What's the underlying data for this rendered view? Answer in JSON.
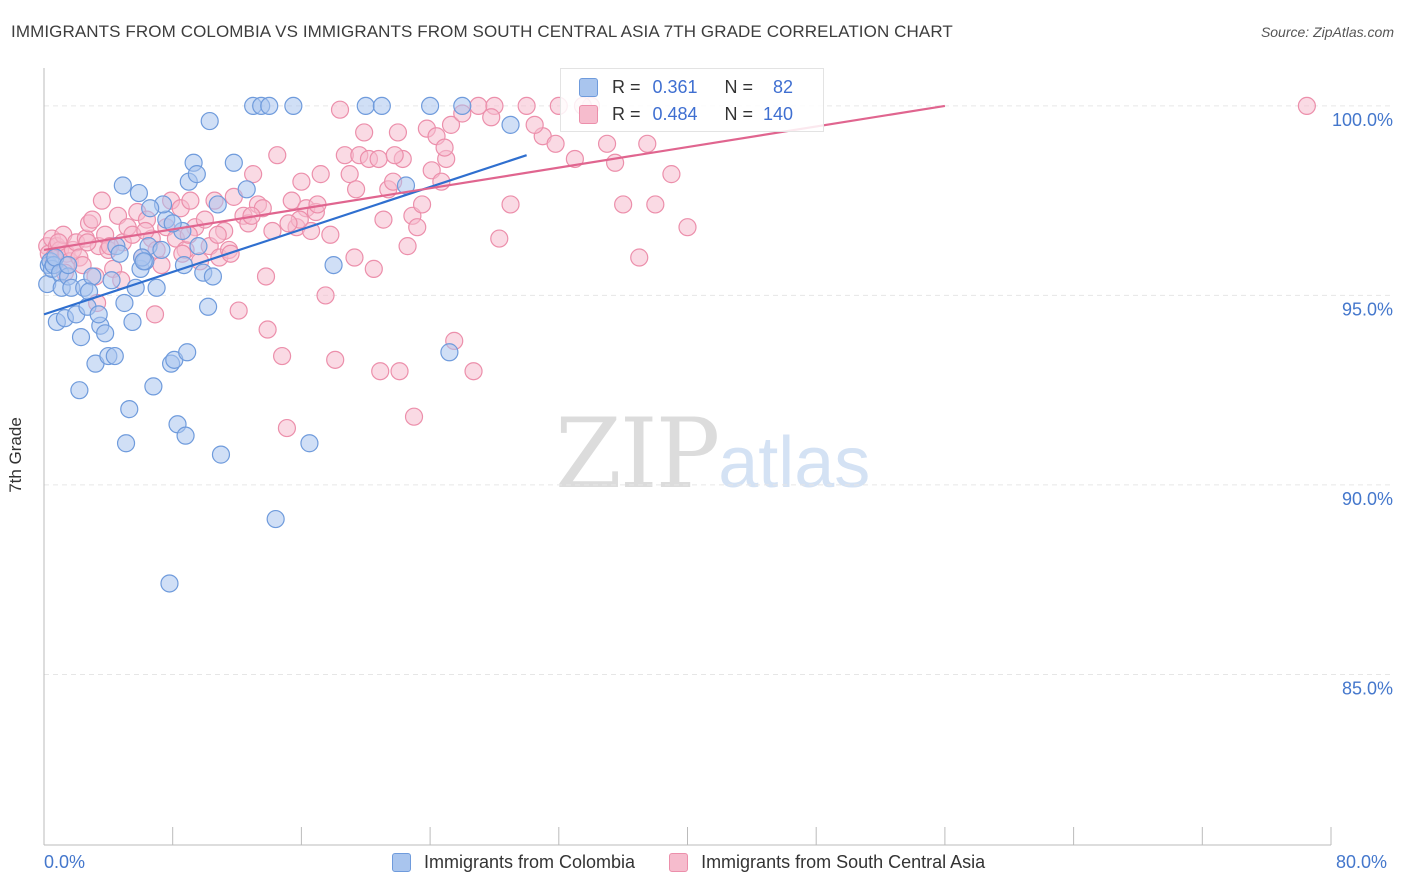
{
  "title": "IMMIGRANTS FROM COLOMBIA VS IMMIGRANTS FROM SOUTH CENTRAL ASIA 7TH GRADE CORRELATION CHART",
  "source": "Source: ZipAtlas.com",
  "watermark": {
    "zip": "ZIP",
    "atlas": "atlas"
  },
  "stats": {
    "colombia": {
      "r_label": "R =",
      "r_value": "0.361",
      "n_label": "N =",
      "n_value": "82"
    },
    "sca": {
      "r_label": "R =",
      "r_value": "0.484",
      "n_label": "N =",
      "n_value": "140"
    }
  },
  "legend": {
    "colombia": "Immigrants from Colombia",
    "sca": "Immigrants from South Central Asia"
  },
  "colors": {
    "blue_fill": "#a9c5ee",
    "blue_stroke": "#6f9bdc",
    "blue_line": "#2f6fcf",
    "pink_fill": "#f6bccd",
    "pink_stroke": "#ec8fab",
    "pink_line": "#e0658f",
    "tick_text": "#4477cc",
    "grid": "#e6e6e6"
  },
  "chart_data": {
    "type": "scatter",
    "title": "IMMIGRANTS FROM COLOMBIA VS IMMIGRANTS FROM SOUTH CENTRAL ASIA 7TH GRADE CORRELATION CHART",
    "xlabel": "",
    "ylabel": "7th Grade",
    "xlim": [
      0,
      80
    ],
    "ylim": [
      80.5,
      101.0
    ],
    "x_tick_labels": [
      "0.0%",
      "80.0%"
    ],
    "y_ticks": [
      85.0,
      90.0,
      95.0,
      100.0
    ],
    "y_tick_labels": [
      "85.0%",
      "90.0%",
      "95.0%",
      "100.0%"
    ],
    "grid": true,
    "legend_position": "bottom",
    "series": [
      {
        "name": "Immigrants from Colombia",
        "r": 0.361,
        "n": 82,
        "trend": {
          "x": [
            0.0,
            30.0
          ],
          "y": [
            94.5,
            98.7
          ]
        },
        "points": [
          [
            0.2,
            95.3
          ],
          [
            0.3,
            95.8
          ],
          [
            0.4,
            95.9
          ],
          [
            0.5,
            95.7
          ],
          [
            0.6,
            95.8
          ],
          [
            0.7,
            96.0
          ],
          [
            0.8,
            94.3
          ],
          [
            1.0,
            95.6
          ],
          [
            1.1,
            95.2
          ],
          [
            1.3,
            94.4
          ],
          [
            1.5,
            95.5
          ],
          [
            1.7,
            95.2
          ],
          [
            2.0,
            94.5
          ],
          [
            2.3,
            93.9
          ],
          [
            2.5,
            95.2
          ],
          [
            2.7,
            94.7
          ],
          [
            3.0,
            95.5
          ],
          [
            3.2,
            93.2
          ],
          [
            3.5,
            94.2
          ],
          [
            3.8,
            94.0
          ],
          [
            4.0,
            93.4
          ],
          [
            4.2,
            95.4
          ],
          [
            4.5,
            96.3
          ],
          [
            4.7,
            96.1
          ],
          [
            5.0,
            94.8
          ],
          [
            5.3,
            92.0
          ],
          [
            5.5,
            94.3
          ],
          [
            5.7,
            95.2
          ],
          [
            6.0,
            95.7
          ],
          [
            6.3,
            95.9
          ],
          [
            6.5,
            96.3
          ],
          [
            6.8,
            92.6
          ],
          [
            7.0,
            95.2
          ],
          [
            7.3,
            96.2
          ],
          [
            7.6,
            97.0
          ],
          [
            7.9,
            93.2
          ],
          [
            8.1,
            93.3
          ],
          [
            8.3,
            91.6
          ],
          [
            8.6,
            96.7
          ],
          [
            8.8,
            91.3
          ],
          [
            9.0,
            98.0
          ],
          [
            9.3,
            98.5
          ],
          [
            9.6,
            96.3
          ],
          [
            9.9,
            95.6
          ],
          [
            10.2,
            94.7
          ],
          [
            10.5,
            95.5
          ],
          [
            10.8,
            97.4
          ],
          [
            11.0,
            90.8
          ],
          [
            1.5,
            95.8
          ],
          [
            2.2,
            92.5
          ],
          [
            4.9,
            97.9
          ],
          [
            5.9,
            97.7
          ],
          [
            6.1,
            96.0
          ],
          [
            7.4,
            97.4
          ],
          [
            8.0,
            96.9
          ],
          [
            8.9,
            93.5
          ],
          [
            9.5,
            98.2
          ],
          [
            10.3,
            99.6
          ],
          [
            11.8,
            98.5
          ],
          [
            12.6,
            97.8
          ],
          [
            13.0,
            100.0
          ],
          [
            13.5,
            100.0
          ],
          [
            14.0,
            100.0
          ],
          [
            14.4,
            89.1
          ],
          [
            15.5,
            100.0
          ],
          [
            16.5,
            91.1
          ],
          [
            18.0,
            95.8
          ],
          [
            20.0,
            100.0
          ],
          [
            21.0,
            100.0
          ],
          [
            22.5,
            97.9
          ],
          [
            24.0,
            100.0
          ],
          [
            25.2,
            93.5
          ],
          [
            26.0,
            100.0
          ],
          [
            29.0,
            99.5
          ],
          [
            4.4,
            93.4
          ],
          [
            3.4,
            94.5
          ],
          [
            5.1,
            91.1
          ],
          [
            6.6,
            97.3
          ],
          [
            8.7,
            95.8
          ],
          [
            7.8,
            87.4
          ],
          [
            2.8,
            95.1
          ],
          [
            6.2,
            95.9
          ]
        ]
      },
      {
        "name": "Immigrants from South Central Asia",
        "r": 0.484,
        "n": 140,
        "trend": {
          "x": [
            0.0,
            56.0
          ],
          "y": [
            96.2,
            100.0
          ]
        },
        "points": [
          [
            0.2,
            96.3
          ],
          [
            0.3,
            96.1
          ],
          [
            0.5,
            96.5
          ],
          [
            0.6,
            96.0
          ],
          [
            0.8,
            96.3
          ],
          [
            1.0,
            96.2
          ],
          [
            1.2,
            96.6
          ],
          [
            1.4,
            96.1
          ],
          [
            1.6,
            95.9
          ],
          [
            1.8,
            96.2
          ],
          [
            2.0,
            96.4
          ],
          [
            2.2,
            96.0
          ],
          [
            2.4,
            95.8
          ],
          [
            2.6,
            96.5
          ],
          [
            2.8,
            96.9
          ],
          [
            3.0,
            97.0
          ],
          [
            3.2,
            95.5
          ],
          [
            3.4,
            96.3
          ],
          [
            3.6,
            97.5
          ],
          [
            3.8,
            96.6
          ],
          [
            4.0,
            96.2
          ],
          [
            4.3,
            95.7
          ],
          [
            4.6,
            97.1
          ],
          [
            4.9,
            96.4
          ],
          [
            5.2,
            96.8
          ],
          [
            5.5,
            96.6
          ],
          [
            5.8,
            97.2
          ],
          [
            6.1,
            96.0
          ],
          [
            6.4,
            97.0
          ],
          [
            6.7,
            96.5
          ],
          [
            7.0,
            96.2
          ],
          [
            7.3,
            95.8
          ],
          [
            7.6,
            96.8
          ],
          [
            7.9,
            97.5
          ],
          [
            8.2,
            96.5
          ],
          [
            8.5,
            97.3
          ],
          [
            8.8,
            96.2
          ],
          [
            9.1,
            97.5
          ],
          [
            9.4,
            96.8
          ],
          [
            9.7,
            95.9
          ],
          [
            10.0,
            97.0
          ],
          [
            10.3,
            96.3
          ],
          [
            10.6,
            97.5
          ],
          [
            10.9,
            96.0
          ],
          [
            11.2,
            96.7
          ],
          [
            11.5,
            96.2
          ],
          [
            11.8,
            97.6
          ],
          [
            12.1,
            94.6
          ],
          [
            12.4,
            97.1
          ],
          [
            12.7,
            96.9
          ],
          [
            13.0,
            98.2
          ],
          [
            13.3,
            97.4
          ],
          [
            13.6,
            97.3
          ],
          [
            13.9,
            94.1
          ],
          [
            14.2,
            96.7
          ],
          [
            14.5,
            98.7
          ],
          [
            14.8,
            93.4
          ],
          [
            15.1,
            91.5
          ],
          [
            15.4,
            97.5
          ],
          [
            15.7,
            96.8
          ],
          [
            16.0,
            98.0
          ],
          [
            16.3,
            97.3
          ],
          [
            16.6,
            96.7
          ],
          [
            16.9,
            97.2
          ],
          [
            17.2,
            98.2
          ],
          [
            17.5,
            95.0
          ],
          [
            17.8,
            96.6
          ],
          [
            18.1,
            93.3
          ],
          [
            18.4,
            99.9
          ],
          [
            18.7,
            98.7
          ],
          [
            19.0,
            98.2
          ],
          [
            19.3,
            96.0
          ],
          [
            19.6,
            98.7
          ],
          [
            19.9,
            99.3
          ],
          [
            20.2,
            98.6
          ],
          [
            20.5,
            95.7
          ],
          [
            20.8,
            98.6
          ],
          [
            21.1,
            97.0
          ],
          [
            21.4,
            97.8
          ],
          [
            21.7,
            98.0
          ],
          [
            22.0,
            99.3
          ],
          [
            22.3,
            98.6
          ],
          [
            22.6,
            96.3
          ],
          [
            22.9,
            97.1
          ],
          [
            23.2,
            96.8
          ],
          [
            23.5,
            97.4
          ],
          [
            23.8,
            99.4
          ],
          [
            24.1,
            98.3
          ],
          [
            24.4,
            99.2
          ],
          [
            24.7,
            98.0
          ],
          [
            25.0,
            98.6
          ],
          [
            25.3,
            99.5
          ],
          [
            26.0,
            99.8
          ],
          [
            27.0,
            100.0
          ],
          [
            28.0,
            100.0
          ],
          [
            29.0,
            97.4
          ],
          [
            30.0,
            100.0
          ],
          [
            31.0,
            99.2
          ],
          [
            32.0,
            100.0
          ],
          [
            33.0,
            98.6
          ],
          [
            34.0,
            100.0
          ],
          [
            35.0,
            99.0
          ],
          [
            36.0,
            97.4
          ],
          [
            37.0,
            96.0
          ],
          [
            38.0,
            97.4
          ],
          [
            39.0,
            98.2
          ],
          [
            40.0,
            96.8
          ],
          [
            0.9,
            96.4
          ],
          [
            1.3,
            95.6
          ],
          [
            2.7,
            96.4
          ],
          [
            3.3,
            94.8
          ],
          [
            4.8,
            95.4
          ],
          [
            6.9,
            94.5
          ],
          [
            9.0,
            96.6
          ],
          [
            11.6,
            96.1
          ],
          [
            13.8,
            95.5
          ],
          [
            15.9,
            97.0
          ],
          [
            20.9,
            93.0
          ],
          [
            22.1,
            93.0
          ],
          [
            23.0,
            91.8
          ],
          [
            25.5,
            93.8
          ],
          [
            26.7,
            93.0
          ],
          [
            28.3,
            96.5
          ],
          [
            30.5,
            99.5
          ],
          [
            31.8,
            99.0
          ],
          [
            33.5,
            100.0
          ],
          [
            35.5,
            98.5
          ],
          [
            37.5,
            99.0
          ],
          [
            27.8,
            99.7
          ],
          [
            24.9,
            98.9
          ],
          [
            21.8,
            98.7
          ],
          [
            19.4,
            97.8
          ],
          [
            17.0,
            97.4
          ],
          [
            15.2,
            96.9
          ],
          [
            12.9,
            97.1
          ],
          [
            10.8,
            96.6
          ],
          [
            8.6,
            96.1
          ],
          [
            6.3,
            96.7
          ],
          [
            4.1,
            96.3
          ],
          [
            78.5,
            100.0
          ]
        ]
      }
    ]
  }
}
